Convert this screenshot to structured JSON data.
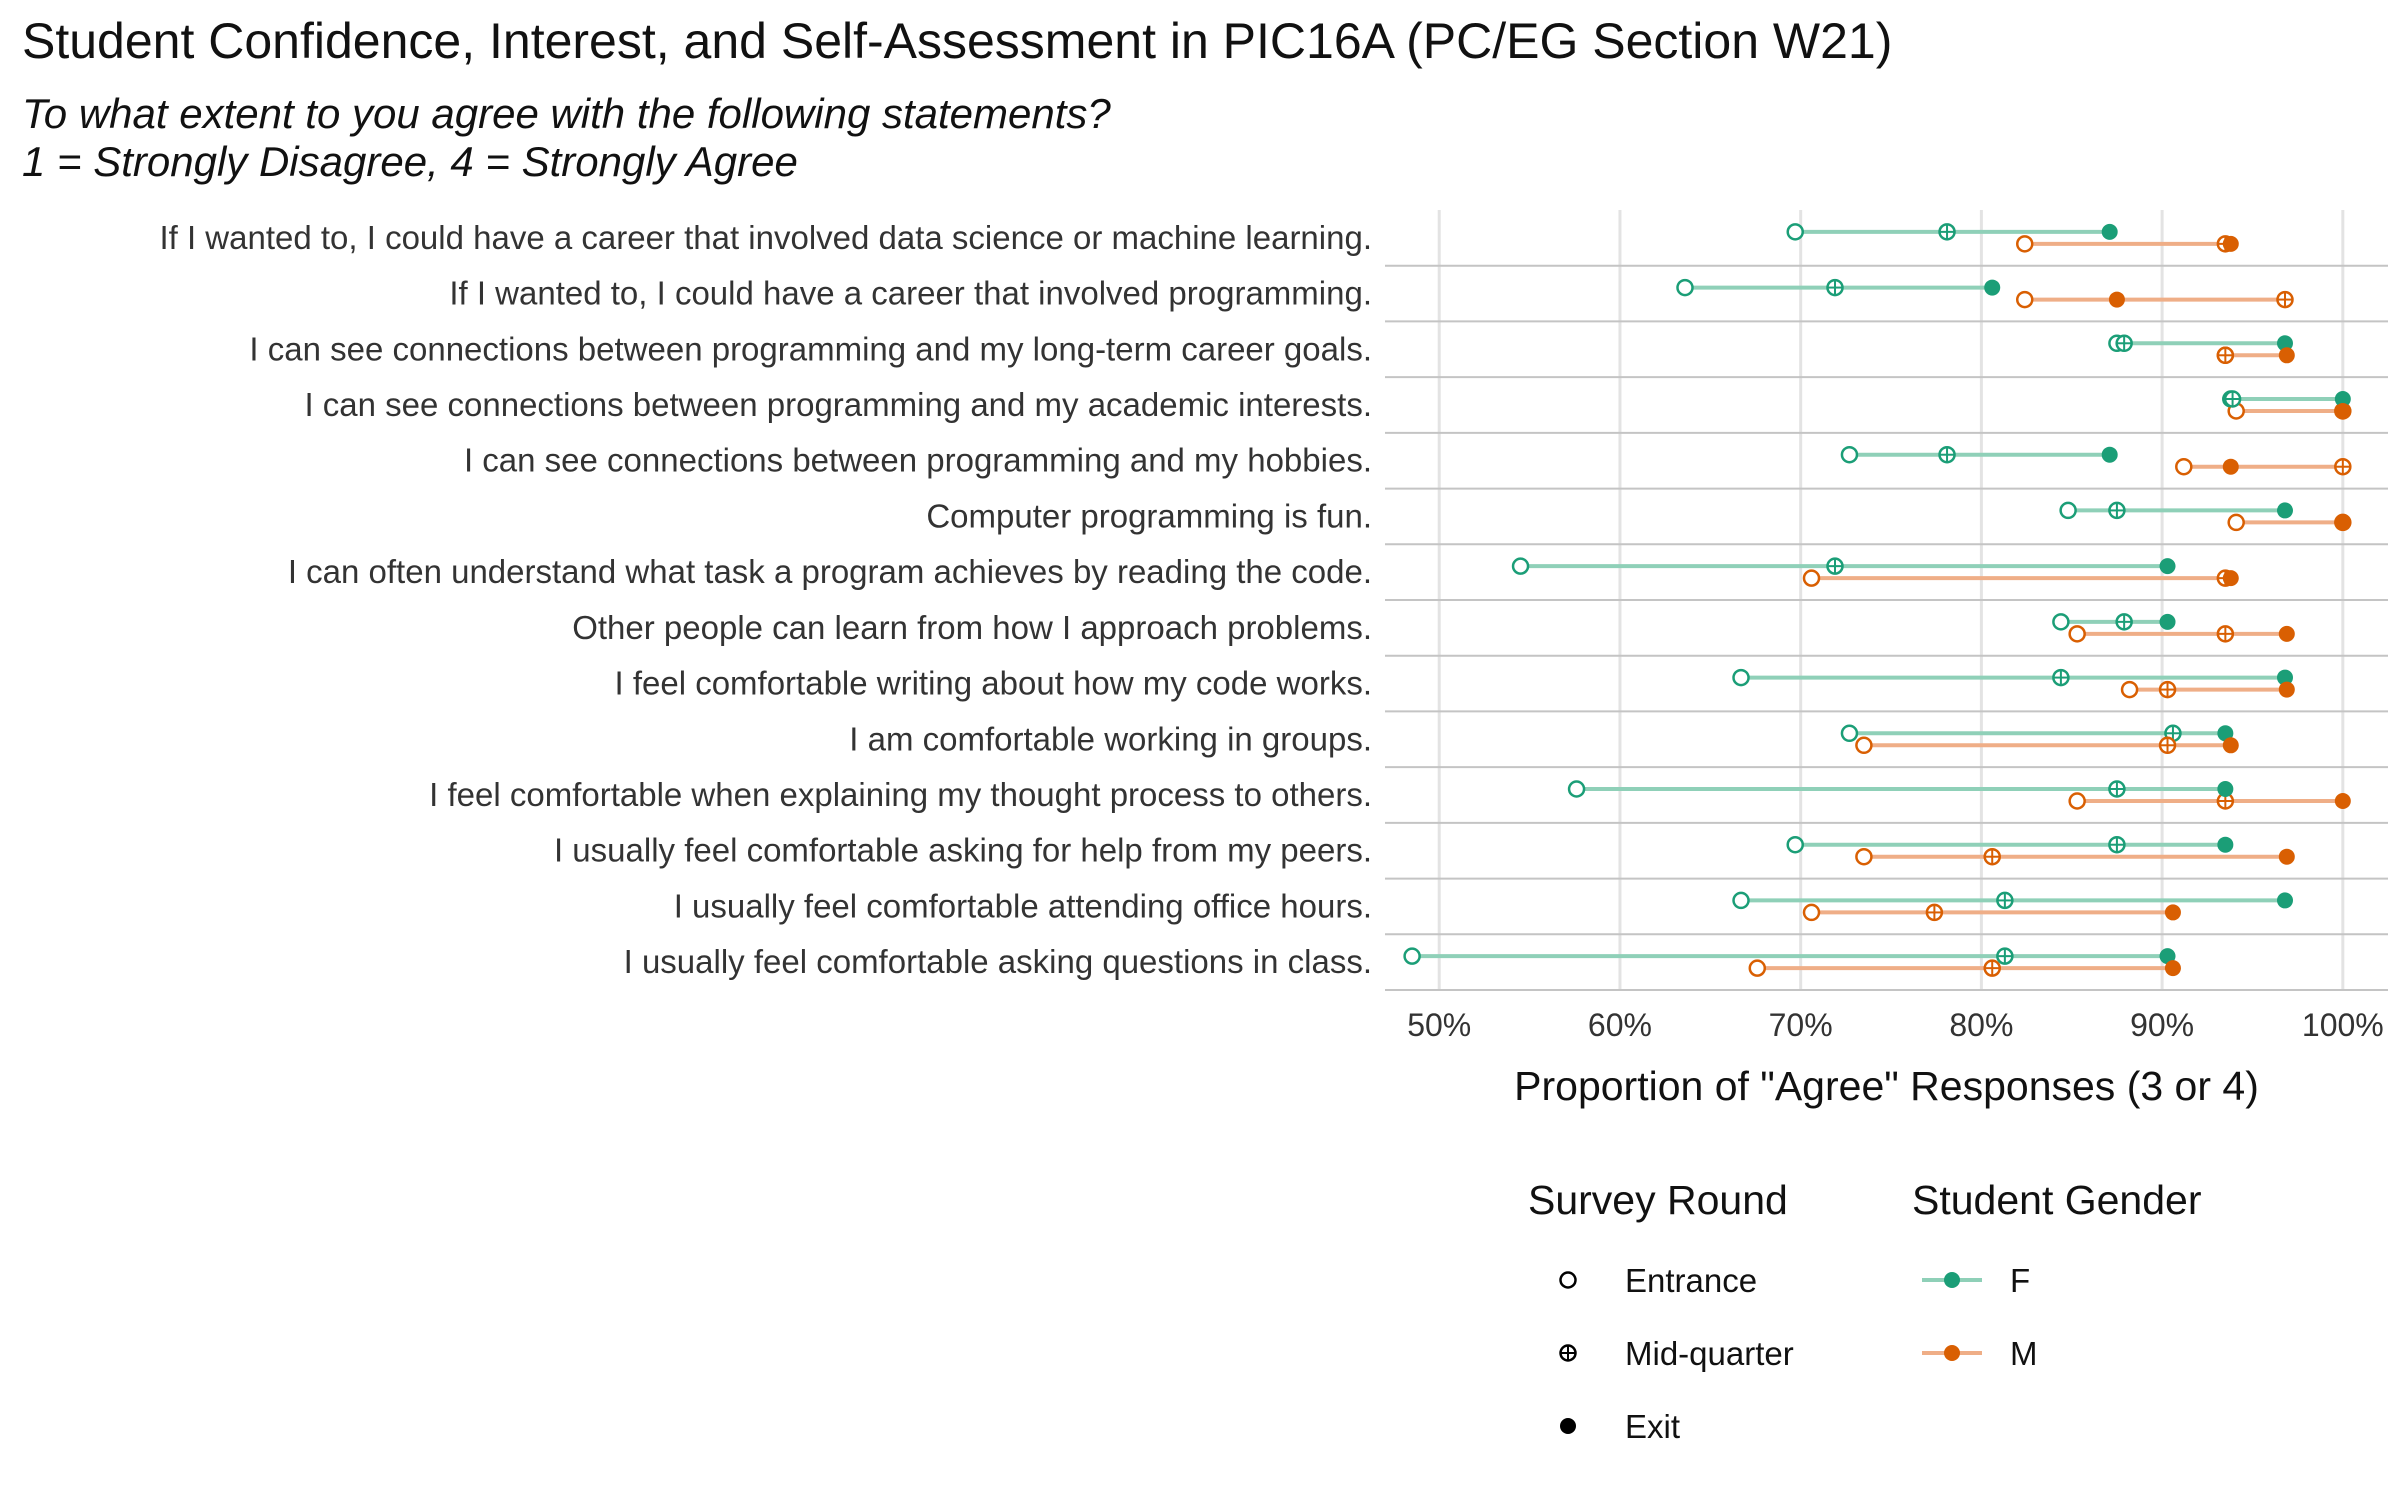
{
  "chart_data": {
    "type": "dumbbell",
    "title": "Student Confidence, Interest, and Self-Assessment in PIC16A (PC/EG Section W21)",
    "subtitle_line1": "To what extent to you agree with the following statements?",
    "subtitle_line2": "1 = Strongly Disagree,  4 = Strongly Agree",
    "xlabel": "Proportion of \"Agree\" Responses (3 or 4)",
    "xlim": [
      0.47,
      1.025
    ],
    "x_ticks": [
      0.5,
      0.6,
      0.7,
      0.8,
      0.9,
      1.0
    ],
    "x_tick_labels": [
      "50%",
      "60%",
      "70%",
      "80%",
      "90%",
      "100%"
    ],
    "grid": true,
    "legend_placement": "bottom",
    "colors": {
      "F": "#1b9e77",
      "M": "#d95f02",
      "F_line": "#8fd0b8",
      "M_line": "#efae87"
    },
    "legend": {
      "round_title": "Survey Round",
      "round_items": [
        "Entrance",
        "Mid-quarter",
        "Exit"
      ],
      "gender_title": "Student Gender",
      "gender_items": [
        "F",
        "M"
      ]
    },
    "categories": [
      "If I wanted to, I could have a career that involved data science or machine learning.",
      "If I wanted to, I could have a career that involved programming.",
      "I can see connections between programming and my long-term career goals.",
      "I can see connections between programming and my academic interests.",
      "I can see connections between programming and my hobbies.",
      "Computer programming is fun.",
      "I can often understand what task a program achieves by reading the code.",
      "Other people can learn from how I approach problems.",
      "I feel comfortable writing about how my code works.",
      "I am comfortable working in groups.",
      "I feel comfortable when explaining my thought process to others.",
      "I usually feel comfortable asking for help from my peers.",
      "I usually feel comfortable attending office hours.",
      "I usually feel comfortable asking questions in class."
    ],
    "series": [
      {
        "gender": "F",
        "round": "Entrance",
        "values": [
          0.697,
          0.636,
          0.875,
          0.938,
          0.727,
          0.848,
          0.545,
          0.844,
          0.667,
          0.727,
          0.576,
          0.697,
          0.667,
          0.485
        ]
      },
      {
        "gender": "F",
        "round": "Mid-quarter",
        "values": [
          0.781,
          0.719,
          0.879,
          0.939,
          0.781,
          0.875,
          0.719,
          0.879,
          0.844,
          0.906,
          0.875,
          0.875,
          0.813,
          0.813
        ]
      },
      {
        "gender": "F",
        "round": "Exit",
        "values": [
          0.871,
          0.806,
          0.968,
          1.0,
          0.871,
          0.968,
          0.903,
          0.903,
          0.968,
          0.935,
          0.935,
          0.935,
          0.968,
          0.903
        ]
      },
      {
        "gender": "M",
        "round": "Entrance",
        "values": [
          0.824,
          0.824,
          0.935,
          0.941,
          0.912,
          0.941,
          0.706,
          0.853,
          0.882,
          0.735,
          0.853,
          0.735,
          0.706,
          0.676
        ]
      },
      {
        "gender": "M",
        "round": "Mid-quarter",
        "values": [
          0.935,
          0.968,
          0.935,
          1.0,
          1.0,
          1.0,
          0.935,
          0.935,
          0.903,
          0.903,
          0.935,
          0.806,
          0.774,
          0.806
        ]
      },
      {
        "gender": "M",
        "round": "Exit",
        "values": [
          0.938,
          0.875,
          0.969,
          1.0,
          0.938,
          1.0,
          0.938,
          0.969,
          0.969,
          0.938,
          1.0,
          0.969,
          0.906,
          0.906
        ]
      }
    ]
  }
}
